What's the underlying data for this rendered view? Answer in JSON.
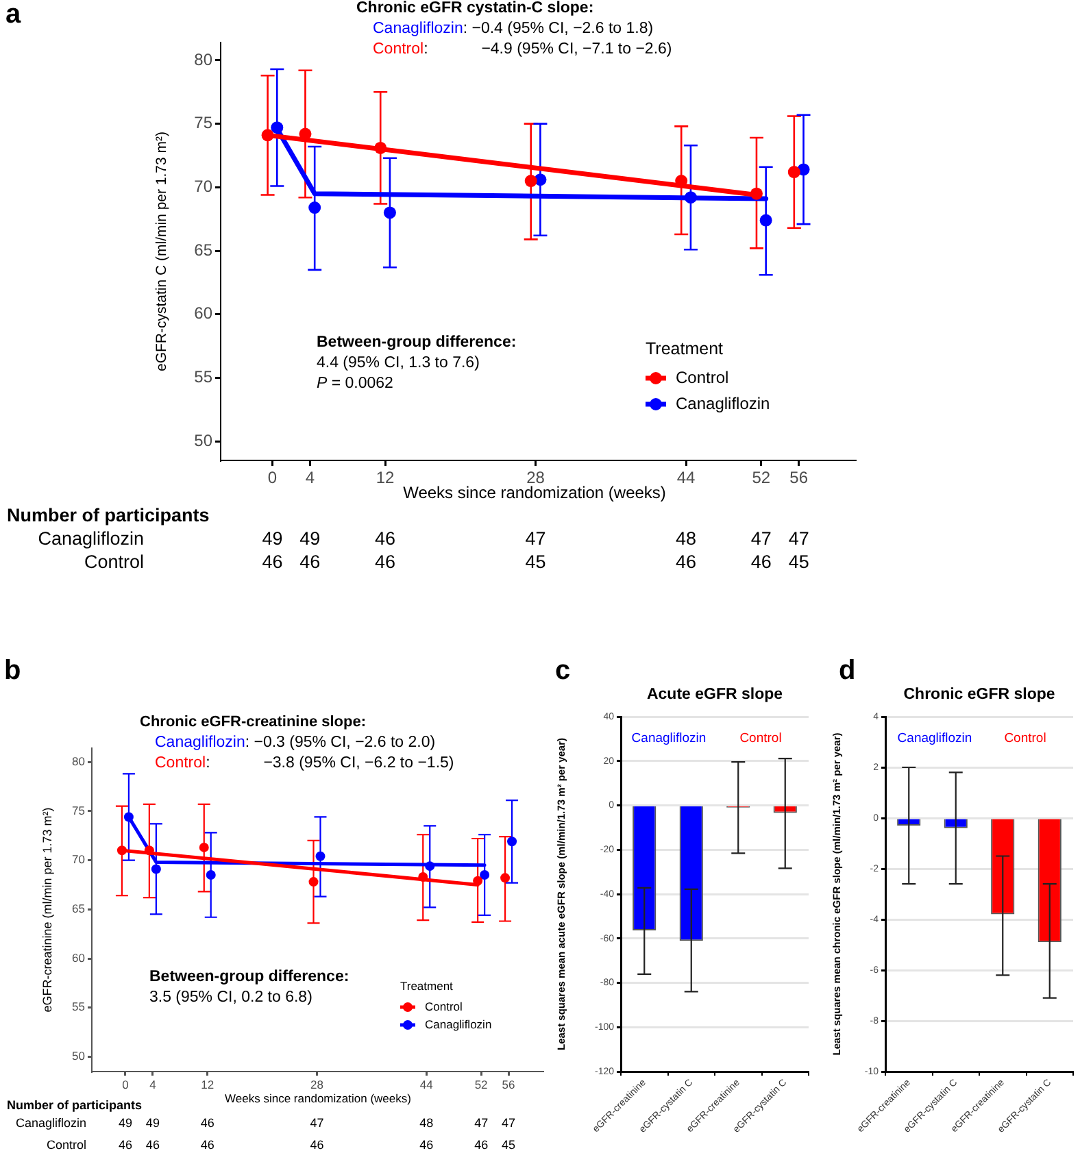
{
  "chart_data": [
    {
      "type": "scatter",
      "title": "Chronic eGFR cystatin-C slope:",
      "xlabel": "Weeks since randomization (weeks)",
      "ylabel": "eGFR-cystatin C (ml/min per 1.73 m²)",
      "legend_title": "Treatment",
      "legend": "bottom right",
      "xlim": [
        -5.5,
        62
      ],
      "xticks": [
        0,
        4,
        12,
        28,
        44,
        52,
        56
      ],
      "ylim": [
        48.5,
        81.4
      ],
      "yticks": [
        50,
        55,
        60,
        65,
        70,
        75,
        80
      ],
      "series": [
        {
          "name": "Control",
          "color": "#ff0000",
          "marker": "circle",
          "x": [
            -0.5,
            3.5,
            11.5,
            27.5,
            43.5,
            51.5,
            55.5
          ],
          "values": [
            74.1,
            74.2,
            73.1,
            70.5,
            70.5,
            69.5,
            71.2
          ],
          "errors": [
            [
              69.4,
              78.8
            ],
            [
              69.2,
              79.2
            ],
            [
              68.7,
              77.5
            ],
            [
              65.9,
              75.0
            ],
            [
              66.3,
              74.8
            ],
            [
              65.2,
              73.9
            ],
            [
              66.8,
              75.6
            ]
          ]
        },
        {
          "name": "Canagliflozin",
          "color": "#0000ff",
          "marker": "circle",
          "x": [
            0.5,
            4.5,
            12.5,
            28.5,
            44.5,
            52.5,
            56.5
          ],
          "values": [
            74.7,
            68.4,
            68.0,
            70.6,
            69.2,
            67.4,
            71.4
          ],
          "errors": [
            [
              70.1,
              79.3
            ],
            [
              63.5,
              73.2
            ],
            [
              63.7,
              72.3
            ],
            [
              66.2,
              75.0
            ],
            [
              65.1,
              73.3
            ],
            [
              63.1,
              71.6
            ],
            [
              67.1,
              75.7
            ]
          ]
        },
        {
          "type": "line",
          "color": "#ff0000",
          "marker": "none",
          "x": [
            -0.5,
            51.5
          ],
          "values": [
            74.1,
            69.4
          ]
        },
        {
          "type": "line",
          "color": "#0000ff",
          "marker": "none",
          "x": [
            0.5,
            4.5,
            52.5
          ],
          "values": [
            74.6,
            69.5,
            69.1
          ]
        }
      ],
      "annotations": [
        "a",
        "Canagliflozin: −0.4 (95% CI, −2.6 to 1.8)",
        "Control: −4.9 (95% CI, −7.1 to −2.6)",
        "Between-group difference:",
        "4.4 (95% CI, 1.3 to 7.6)",
        "P = 0.0062",
        "Number of participants",
        "Canagliflozin",
        "49",
        "49",
        "46",
        "47",
        "48",
        "47",
        "47",
        "Control",
        "46",
        "46",
        "46",
        "45",
        "46",
        "46",
        "45"
      ]
    },
    {
      "type": "scatter",
      "title": "Chronic eGFR-creatinine slope:",
      "xlabel": "Weeks since randomization (weeks)",
      "ylabel": "eGFR-creatinine (ml/min per 1.73 m²)",
      "legend_title": "Treatment",
      "legend": "bottom right",
      "xlim": [
        -4.9,
        61
      ],
      "xticks": [
        0,
        4,
        12,
        28,
        44,
        52,
        56
      ],
      "ylim": [
        48.5,
        81.4
      ],
      "yticks": [
        50,
        55,
        60,
        65,
        70,
        75,
        80
      ],
      "series": [
        {
          "name": "Control",
          "color": "#ff0000",
          "marker": "circle",
          "x": [
            -0.5,
            3.5,
            11.5,
            27.5,
            43.5,
            51.5,
            55.5
          ],
          "values": [
            71.0,
            71.0,
            71.3,
            67.8,
            68.3,
            67.9,
            68.2
          ],
          "errors": [
            [
              66.4,
              75.5
            ],
            [
              66.2,
              75.7
            ],
            [
              66.8,
              75.7
            ],
            [
              63.6,
              72.0
            ],
            [
              63.9,
              72.6
            ],
            [
              63.7,
              72.2
            ],
            [
              63.8,
              72.4
            ]
          ]
        },
        {
          "name": "Canagliflozin",
          "color": "#0000ff",
          "marker": "circle",
          "x": [
            0.5,
            4.5,
            12.5,
            28.5,
            44.5,
            52.5,
            56.5
          ],
          "values": [
            74.4,
            69.1,
            68.5,
            70.4,
            69.4,
            68.5,
            71.9
          ],
          "errors": [
            [
              70.0,
              78.8
            ],
            [
              64.5,
              73.7
            ],
            [
              64.2,
              72.8
            ],
            [
              66.3,
              74.4
            ],
            [
              65.2,
              73.5
            ],
            [
              64.4,
              72.6
            ],
            [
              67.7,
              76.1
            ]
          ]
        },
        {
          "type": "line",
          "color": "#ff0000",
          "marker": "none",
          "x": [
            -0.5,
            51.5
          ],
          "values": [
            71.0,
            67.5
          ]
        },
        {
          "type": "line",
          "color": "#0000ff",
          "marker": "none",
          "x": [
            0.5,
            4.5,
            52.5
          ],
          "values": [
            74.4,
            69.8,
            69.5
          ]
        }
      ],
      "annotations": [
        "b",
        "Canagliflozin: −0.3 (95% CI, −2.6 to 2.0)",
        "Control: −3.8 (95% CI, −6.2 to −1.5)",
        "Between-group difference:",
        "3.5 (95% CI, 0.2 to 6.8)",
        "Number of participants",
        "Canagliflozin",
        "49",
        "49",
        "46",
        "47",
        "48",
        "47",
        "47",
        "Control",
        "46",
        "46",
        "46",
        "46",
        "46",
        "46",
        "45"
      ]
    },
    {
      "type": "bar",
      "title": "Acute eGFR slope",
      "ylabel": "Least squares mean acute eGFR slope (ml/min/1.73 m² per year)",
      "categories": [
        "eGFR-creatinine",
        "eGFR-cystatin C",
        "eGFR-creatinine",
        "eGFR-cystatin C"
      ],
      "values": [
        -56.4,
        -61.1,
        -1.0,
        -3.4
      ],
      "colors": [
        "#0000ff",
        "#0000ff",
        "#ff0000",
        "#ff0000"
      ],
      "errors": [
        [
          -76.1,
          -37.2
        ],
        [
          -84.0,
          -37.8
        ],
        [
          -21.6,
          19.6
        ],
        [
          -28.4,
          21.1
        ]
      ],
      "ylim": [
        -120,
        40
      ],
      "yticks": [
        -120,
        -100,
        -80,
        -60,
        -40,
        -20,
        0,
        20,
        40
      ],
      "grid": "y",
      "annotations": [
        "c",
        "Canagliflozin",
        "Control"
      ]
    },
    {
      "type": "bar",
      "title": "Chronic eGFR slope",
      "ylabel": "Least squares mean chronic eGFR slope (ml/min/1.73 m² per year)",
      "categories": [
        "eGFR-creatinine",
        "eGFR-cystatin C",
        "eGFR-creatinine",
        "eGFR-cystatin C"
      ],
      "values": [
        -0.3,
        -0.4,
        -3.8,
        -4.9
      ],
      "colors": [
        "#0000ff",
        "#0000ff",
        "#ff0000",
        "#ff0000"
      ],
      "errors": [
        [
          -2.6,
          2.0
        ],
        [
          -2.6,
          1.8
        ],
        [
          -6.2,
          -1.5
        ],
        [
          -7.1,
          -2.6
        ]
      ],
      "ylim": [
        -10,
        4
      ],
      "yticks": [
        -10,
        -8,
        -6,
        -4,
        -2,
        0,
        2,
        4
      ],
      "grid": "y",
      "annotations": [
        "d",
        "Canagliflozin",
        "Control"
      ]
    }
  ]
}
